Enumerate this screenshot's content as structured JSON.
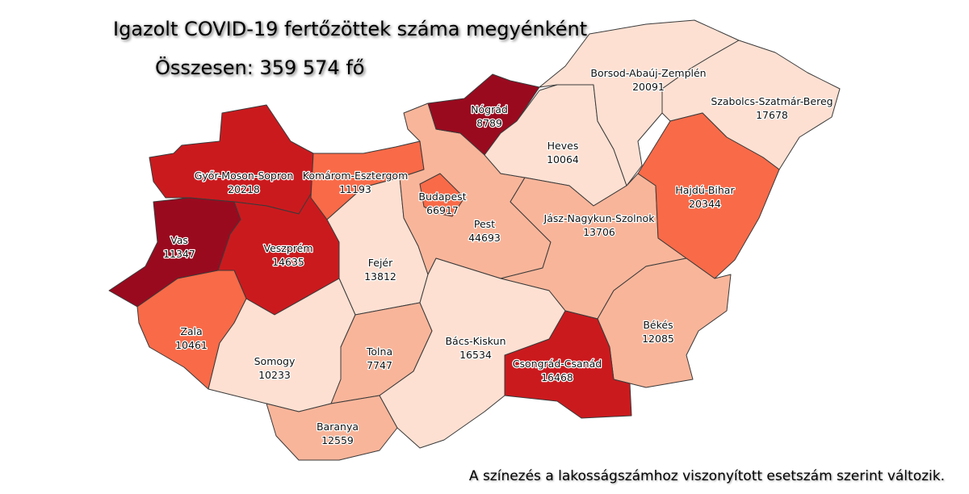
{
  "title": "Igazolt COVID-19 fertőzöttek száma megyénként",
  "total": "Összesen: 359 574 fő",
  "note": "A színezés a lakosságszámhoz viszonyított esetszám szerint változik.",
  "colors": {
    "c1": "#fee0d2",
    "c2": "#f9b59a",
    "c3": "#f96a48",
    "c4": "#cb1a1e",
    "c5": "#9a0a1f"
  },
  "counties": [
    {
      "id": "gyor",
      "name": "Győr-Moson-Sopron",
      "value": "20218",
      "color": "#cb1a1e"
    },
    {
      "id": "vas",
      "name": "Vas",
      "value": "11347",
      "color": "#9a0a1f"
    },
    {
      "id": "veszprem",
      "name": "Veszprém",
      "value": "14635",
      "color": "#cb1a1e"
    },
    {
      "id": "zala",
      "name": "Zala",
      "value": "10461",
      "color": "#f96a48"
    },
    {
      "id": "komarom",
      "name": "Komárom-Esztergom",
      "value": "11193",
      "color": "#f96a48"
    },
    {
      "id": "fejer",
      "name": "Fejér",
      "value": "13812",
      "color": "#fee0d2"
    },
    {
      "id": "somogy",
      "name": "Somogy",
      "value": "10233",
      "color": "#fee0d2"
    },
    {
      "id": "tolna",
      "name": "Tolna",
      "value": "7747",
      "color": "#f9b59a"
    },
    {
      "id": "baranya",
      "name": "Baranya",
      "value": "12559",
      "color": "#f9b59a"
    },
    {
      "id": "pest",
      "name": "Pest",
      "value": "44693",
      "color": "#f9b59a"
    },
    {
      "id": "budapest",
      "name": "Budapest",
      "value": "66917",
      "color": "#f96a48"
    },
    {
      "id": "nograd",
      "name": "Nógrád",
      "value": "8789",
      "color": "#9a0a1f"
    },
    {
      "id": "heves",
      "name": "Heves",
      "value": "10064",
      "color": "#fee0d2"
    },
    {
      "id": "borsod",
      "name": "Borsod-Abaúj-Zemplén",
      "value": "20091",
      "color": "#fee0d2"
    },
    {
      "id": "szabolcs",
      "name": "Szabolcs-Szatmár-Bereg",
      "value": "17678",
      "color": "#fee0d2"
    },
    {
      "id": "jasz",
      "name": "Jász-Nagykun-Szolnok",
      "value": "13706",
      "color": "#f9b59a"
    },
    {
      "id": "hajdu",
      "name": "Hajdú-Bihar",
      "value": "20344",
      "color": "#f96a48"
    },
    {
      "id": "bekes",
      "name": "Békés",
      "value": "12085",
      "color": "#f9b59a"
    },
    {
      "id": "csongrad",
      "name": "Csongrád-Csanád",
      "value": "16468",
      "color": "#cb1a1e"
    },
    {
      "id": "bacs",
      "name": "Bács-Kiskun",
      "value": "16534",
      "color": "#fee0d2"
    }
  ]
}
